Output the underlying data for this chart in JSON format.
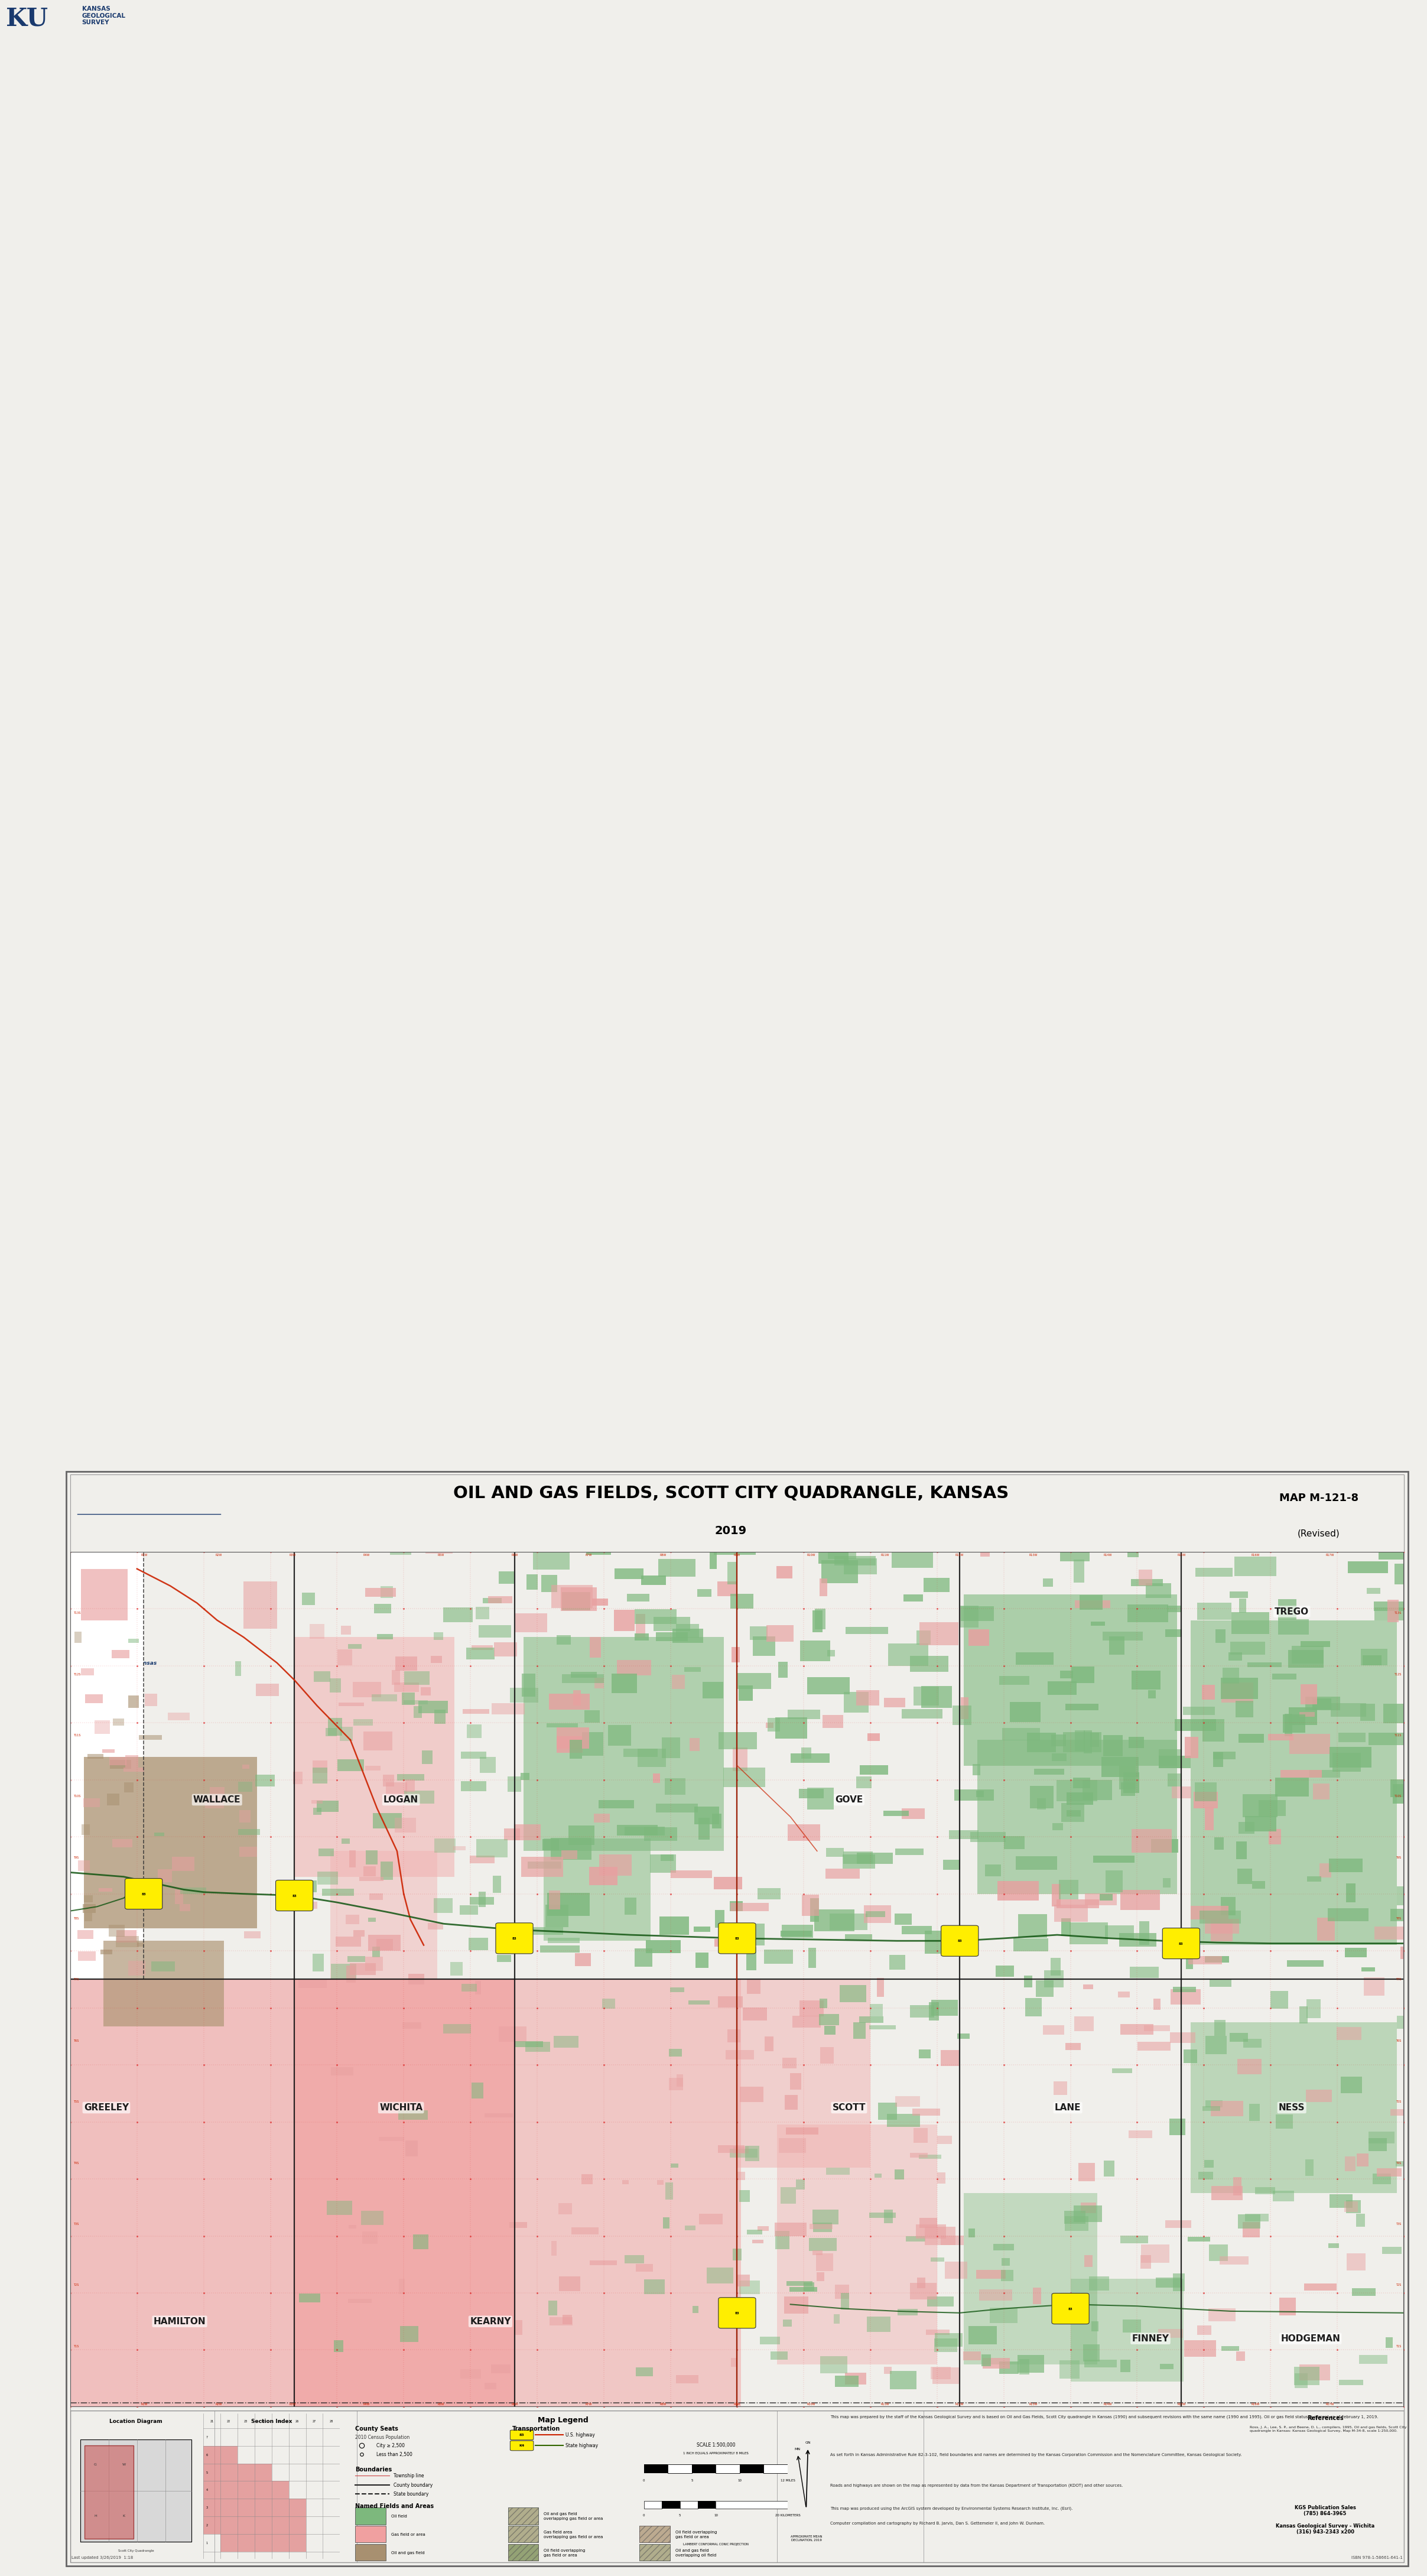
{
  "title_main": "OIL AND GAS FIELDS, SCOTT CITY QUADRANGLE, KANSAS",
  "title_year": "2019",
  "map_number": "MAP M-121-8",
  "map_revised": "(Revised)",
  "bg_color": "#f0efeb",
  "map_bg": "#ffffff",
  "ku_blue": "#1a3a6e",
  "oil_field_color": "#e8a0a0",
  "gas_field_color": "#7db87d",
  "tan_field_color": "#a89070",
  "road_color": "#cc2200",
  "pipeline_color": "#115511",
  "grid_color": "#dd2222",
  "county_line_color": "#222222",
  "county_names_top": [
    "WALLACE",
    "LOGAN",
    "GOVE",
    "TREGO"
  ],
  "county_names_mid": [
    "GREELEY",
    "WICHITA",
    "SCOTT",
    "LANE",
    "NESS"
  ],
  "county_names_bot": [
    "HAMILTON",
    "KEARNY",
    "FINNEY",
    "HODGEMAN"
  ]
}
